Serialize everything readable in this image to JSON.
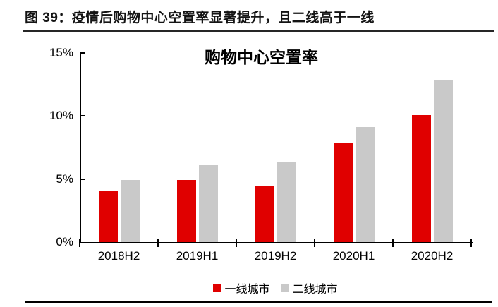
{
  "figure": {
    "header": "图 39：疫情后购物中心空置率显著提升，且二线高于一线"
  },
  "chart_data": {
    "type": "bar",
    "title": "购物中心空置率",
    "categories": [
      "2018H2",
      "2019H1",
      "2019H2",
      "2020H1",
      "2020H2"
    ],
    "series": [
      {
        "name": "一线城市",
        "color": "#e00000",
        "values": [
          4.1,
          4.9,
          4.4,
          7.9,
          10.1
        ]
      },
      {
        "name": "二线城市",
        "color": "#c9c9c9",
        "values": [
          4.9,
          6.1,
          6.4,
          9.1,
          12.9
        ]
      }
    ],
    "ylabel": "",
    "xlabel": "",
    "ylim": [
      0,
      15
    ],
    "yticks": [
      0,
      5,
      10,
      15
    ],
    "ytick_labels": [
      "0%",
      "5%",
      "10%",
      "15%"
    ],
    "grid": false,
    "legend_position": "bottom"
  }
}
